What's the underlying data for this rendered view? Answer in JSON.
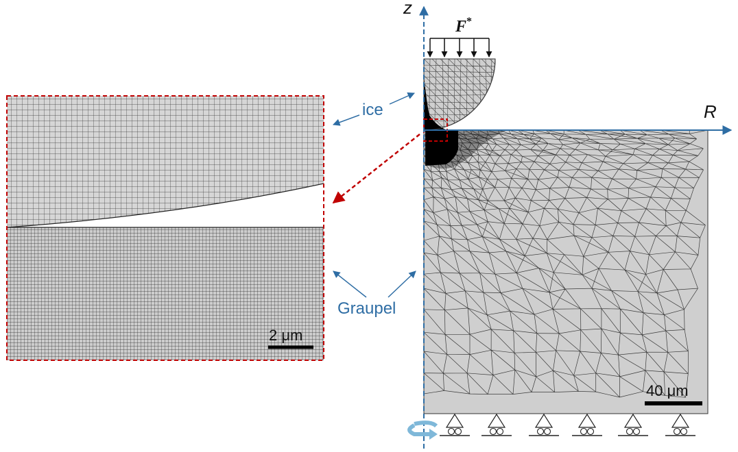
{
  "labels": {
    "axis_z": "z",
    "axis_r": "R",
    "force_base": "F",
    "force_sup": "*",
    "ice": "ice",
    "graupel": "Graupel",
    "scale_left": "2 μm",
    "scale_right": "40 μm"
  },
  "colors": {
    "accent_blue": "#2e6da4",
    "zoom_red": "#c00000",
    "mesh_fill": "#cfcfcf",
    "mesh_line": "#3a3a3a",
    "dense_region": "#000000",
    "rotation_arrow": "#7fb8d9"
  },
  "icons": [
    "force-arrows",
    "roller-support",
    "rotation-arrow"
  ]
}
